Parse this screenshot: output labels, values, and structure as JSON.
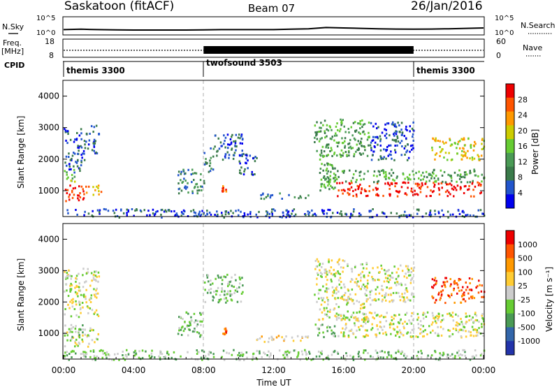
{
  "header": {
    "title": "Saskatoon (fitACF)",
    "beam": "Beam 07",
    "date": "26/Jan/2016"
  },
  "left_labels": {
    "nsky": "N.Sky",
    "freq": "Freq.",
    "freq_unit": "[MHz]",
    "cpid": "CPID"
  },
  "right_labels": {
    "nsearch": "N.Search",
    "nave": "Nave"
  },
  "colors": {
    "power_scale": [
      "#0000ee",
      "#2255cc",
      "#3a7a4a",
      "#4a9a55",
      "#66cc33",
      "#cccc00",
      "#ff9900",
      "#ff5500",
      "#ee0000"
    ],
    "velocity_scale": [
      "#ee0000",
      "#ff5500",
      "#ff9900",
      "#ffcc33",
      "#cccccc",
      "#66cc33",
      "#4a9a55",
      "#3366aa",
      "#2233aa"
    ]
  },
  "chart_data": [
    {
      "type": "line",
      "panel": "noise",
      "left_axis_label": "N.Sky",
      "right_axis_label": "N.Search",
      "ytick_labels": [
        "10^5",
        "10^0"
      ],
      "x_hours": [
        0,
        1,
        2,
        3,
        4,
        5,
        6,
        7,
        8,
        9,
        10,
        11,
        12,
        13,
        14,
        15,
        16,
        17,
        18,
        19,
        20,
        21,
        22,
        23,
        24
      ],
      "sky_level": [
        0.55,
        0.6,
        0.55,
        0.52,
        0.5,
        0.5,
        0.5,
        0.5,
        0.52,
        0.55,
        0.55,
        0.55,
        0.55,
        0.6,
        0.65,
        0.8,
        0.75,
        0.7,
        0.65,
        0.62,
        0.6,
        0.62,
        0.65,
        0.7,
        0.75
      ]
    },
    {
      "type": "line",
      "panel": "frequency",
      "left_axis_label": "Freq. [MHz]",
      "right_axis_label": "Nave",
      "left_ticks": [
        "18",
        "8"
      ],
      "right_ticks": [
        "60",
        "0"
      ],
      "twofsound_band": [
        8,
        20
      ]
    },
    {
      "type": "table",
      "panel": "cpid",
      "label": "CPID",
      "segments": [
        {
          "name": "themis 3300",
          "start": 0,
          "end": 8
        },
        {
          "name": "twofsound 3503",
          "start": 8,
          "end": 20
        },
        {
          "name": "themis 3300",
          "start": 20,
          "end": 24
        }
      ]
    },
    {
      "type": "heatmap",
      "panel": "power",
      "ylabel": "Slant Range [km]",
      "yticks": [
        1000,
        2000,
        3000,
        4000
      ],
      "ylim": [
        180,
        4500
      ],
      "xlim": [
        0,
        24
      ],
      "colorbar_label": "Power [dB]",
      "colorbar_ticks": [
        4,
        8,
        12,
        16,
        20,
        24,
        28
      ],
      "regions": [
        {
          "x": [
            0,
            1.2
          ],
          "y": [
            700,
            1200
          ],
          "level": 8
        },
        {
          "x": [
            0,
            0.6
          ],
          "y": [
            1300,
            1700
          ],
          "level": 4
        },
        {
          "x": [
            1.2,
            2.2
          ],
          "y": [
            900,
            1200
          ],
          "level": 6
        },
        {
          "x": [
            0,
            1.2
          ],
          "y": [
            1600,
            3000
          ],
          "level": 1
        },
        {
          "x": [
            1.2,
            2.0
          ],
          "y": [
            2200,
            3100
          ],
          "level": 1
        },
        {
          "x": [
            6.5,
            8.0
          ],
          "y": [
            900,
            1700
          ],
          "level": 2
        },
        {
          "x": [
            8.0,
            8.6
          ],
          "y": [
            1600,
            2400
          ],
          "level": 2
        },
        {
          "x": [
            8.6,
            10.2
          ],
          "y": [
            2000,
            2900
          ],
          "level": 1
        },
        {
          "x": [
            9.0,
            9.3
          ],
          "y": [
            1000,
            1200
          ],
          "level": 7
        },
        {
          "x": [
            10.0,
            11.0
          ],
          "y": [
            1500,
            2200
          ],
          "level": 1
        },
        {
          "x": [
            11.0,
            14.0
          ],
          "y": [
            750,
            950
          ],
          "level": 2
        },
        {
          "x": [
            14.3,
            17.5
          ],
          "y": [
            2100,
            3300
          ],
          "level": 3
        },
        {
          "x": [
            14.5,
            15.5
          ],
          "y": [
            1000,
            2200
          ],
          "level": 3
        },
        {
          "x": [
            15.5,
            24
          ],
          "y": [
            850,
            1300
          ],
          "level": 8
        },
        {
          "x": [
            15.0,
            24
          ],
          "y": [
            1300,
            1700
          ],
          "level": 3
        },
        {
          "x": [
            17.5,
            20.0
          ],
          "y": [
            2000,
            3200
          ],
          "level": 1
        },
        {
          "x": [
            21.0,
            24
          ],
          "y": [
            2000,
            2700
          ],
          "level": 5
        },
        {
          "x": [
            0,
            24
          ],
          "y": [
            180,
            450
          ],
          "level": 1
        }
      ]
    },
    {
      "type": "heatmap",
      "panel": "velocity",
      "ylabel": "Slant Range [km]",
      "yticks": [
        1000,
        2000,
        3000,
        4000
      ],
      "ylim": [
        180,
        4500
      ],
      "xlim": [
        0,
        24
      ],
      "xlabel": "Time UT",
      "xtick_labels": [
        "00:00",
        "04:00",
        "08:00",
        "12:00",
        "16:00",
        "20:00",
        "00:00"
      ],
      "colorbar_label": "Velocity [m s⁻¹]",
      "colorbar_ticks": [
        1000,
        500,
        100,
        25,
        -25,
        -100,
        -500,
        -1000
      ],
      "regions": [
        {
          "x": [
            0,
            2.0
          ],
          "y": [
            600,
            1200
          ],
          "level": 4
        },
        {
          "x": [
            0,
            1.2
          ],
          "y": [
            900,
            1300
          ],
          "level": 5
        },
        {
          "x": [
            0,
            2.0
          ],
          "y": [
            1500,
            3100
          ],
          "level": 4
        },
        {
          "x": [
            6.5,
            8.0
          ],
          "y": [
            900,
            1700
          ],
          "level": 5
        },
        {
          "x": [
            8.0,
            10.2
          ],
          "y": [
            2000,
            2900
          ],
          "level": 5
        },
        {
          "x": [
            9.0,
            9.3
          ],
          "y": [
            1000,
            1200
          ],
          "level": 1
        },
        {
          "x": [
            11.0,
            14.0
          ],
          "y": [
            750,
            950
          ],
          "level": 3
        },
        {
          "x": [
            14.3,
            17.5
          ],
          "y": [
            1400,
            3400
          ],
          "level": 4
        },
        {
          "x": [
            14.3,
            15.5
          ],
          "y": [
            900,
            1400
          ],
          "level": 5
        },
        {
          "x": [
            15.5,
            24
          ],
          "y": [
            900,
            1700
          ],
          "level": 4
        },
        {
          "x": [
            17.5,
            20.0
          ],
          "y": [
            2000,
            3200
          ],
          "level": 4
        },
        {
          "x": [
            21.0,
            24
          ],
          "y": [
            2000,
            2800
          ],
          "level": 1
        },
        {
          "x": [
            0,
            24
          ],
          "y": [
            180,
            500
          ],
          "level": 5
        }
      ]
    }
  ]
}
